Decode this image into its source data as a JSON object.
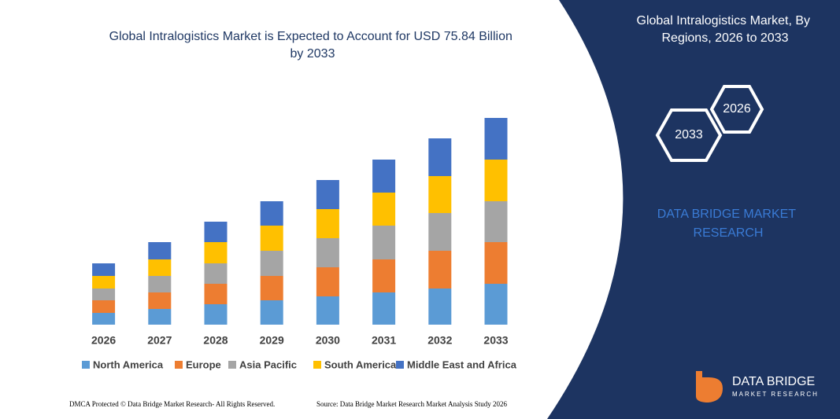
{
  "chart_data": {
    "type": "stacked-bar",
    "title": "Global Intralogistics Market is Expected to Account for USD 75.84 Billion by 2033",
    "categories": [
      "2026",
      "2027",
      "2028",
      "2029",
      "2030",
      "2031",
      "2032",
      "2033"
    ],
    "series": [
      {
        "name": "North America",
        "color": "#5b9bd5",
        "values": [
          15,
          20,
          26,
          31,
          36,
          41,
          46,
          52
        ]
      },
      {
        "name": "Europe",
        "color": "#ed7d31",
        "values": [
          16,
          21,
          26,
          31,
          37,
          42,
          48,
          53
        ]
      },
      {
        "name": "Asia Pacific",
        "color": "#a5a5a5",
        "values": [
          15,
          21,
          26,
          32,
          37,
          43,
          48,
          52
        ]
      },
      {
        "name": "South America",
        "color": "#ffc000",
        "values": [
          16,
          21,
          27,
          32,
          37,
          42,
          47,
          53
        ]
      },
      {
        "name": "Middle East and Africa",
        "color": "#4472c4",
        "values": [
          16,
          22,
          26,
          31,
          37,
          42,
          48,
          53
        ]
      }
    ],
    "legend": "bottom"
  },
  "panel": {
    "title": "Global Intralogistics Market, By Regions, 2026 to 2033",
    "hexagon_start": "2026",
    "hexagon_end": "2033",
    "brand": "DATA BRIDGE MARKET RESEARCH",
    "logo_name": "DATA BRIDGE",
    "logo_sub": "MARKET RESEARCH"
  },
  "footer": {
    "left": "DMCA Protected © Data Bridge Market Research- All Rights Reserved.",
    "right": "Source: Data Bridge Market Research Market Analysis Study 2026"
  }
}
